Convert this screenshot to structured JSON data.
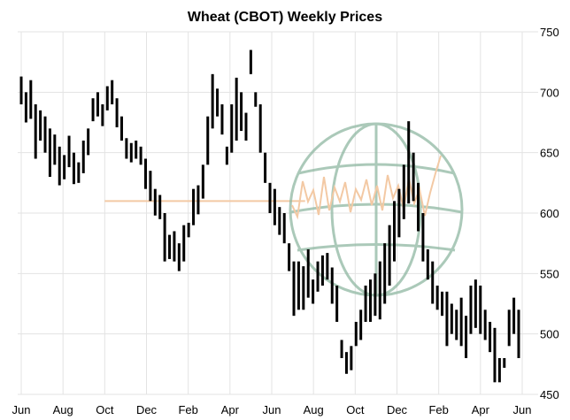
{
  "chart_data": {
    "type": "bar",
    "subtype": "ohlc-weekly",
    "title": "Wheat (CBOT) Weekly Prices",
    "xlabel": "",
    "ylabel": "",
    "x_tick_labels": [
      "Jun",
      "Aug",
      "Oct",
      "Dec",
      "Feb",
      "Apr",
      "Jun",
      "Aug",
      "Oct",
      "Dec",
      "Feb",
      "Apr",
      "Jun"
    ],
    "y_ticks": [
      450,
      500,
      550,
      600,
      650,
      700,
      750
    ],
    "ylim": [
      450,
      750
    ],
    "y_axis_side": "right",
    "grid": true,
    "legend": "none",
    "colors": {
      "bars": "#000000",
      "grid": "#e3e3e3",
      "overlay_line": "#f3c9a4",
      "globe": "#8fb8a2"
    },
    "overlay": {
      "name": "",
      "value": 610
    },
    "series": [
      {
        "name": "",
        "bars": [
          {
            "h": 713,
            "l": 690
          },
          {
            "h": 700,
            "l": 675
          },
          {
            "h": 710,
            "l": 678
          },
          {
            "h": 690,
            "l": 645
          },
          {
            "h": 685,
            "l": 660
          },
          {
            "h": 680,
            "l": 650
          },
          {
            "h": 670,
            "l": 630
          },
          {
            "h": 665,
            "l": 640
          },
          {
            "h": 655,
            "l": 623
          },
          {
            "h": 648,
            "l": 628
          },
          {
            "h": 664,
            "l": 638
          },
          {
            "h": 650,
            "l": 624
          },
          {
            "h": 642,
            "l": 625
          },
          {
            "h": 660,
            "l": 633
          },
          {
            "h": 670,
            "l": 648
          },
          {
            "h": 695,
            "l": 676
          },
          {
            "h": 700,
            "l": 680
          },
          {
            "h": 690,
            "l": 672
          },
          {
            "h": 705,
            "l": 685
          },
          {
            "h": 710,
            "l": 690
          },
          {
            "h": 695,
            "l": 671
          },
          {
            "h": 680,
            "l": 660
          },
          {
            "h": 662,
            "l": 645
          },
          {
            "h": 658,
            "l": 642
          },
          {
            "h": 660,
            "l": 645
          },
          {
            "h": 655,
            "l": 640
          },
          {
            "h": 645,
            "l": 620
          },
          {
            "h": 635,
            "l": 610
          },
          {
            "h": 620,
            "l": 598
          },
          {
            "h": 615,
            "l": 595
          },
          {
            "h": 600,
            "l": 560
          },
          {
            "h": 582,
            "l": 562
          },
          {
            "h": 585,
            "l": 560
          },
          {
            "h": 575,
            "l": 552
          },
          {
            "h": 590,
            "l": 560
          },
          {
            "h": 592,
            "l": 580
          },
          {
            "h": 620,
            "l": 590
          },
          {
            "h": 623,
            "l": 599
          },
          {
            "h": 640,
            "l": 612
          },
          {
            "h": 680,
            "l": 640
          },
          {
            "h": 715,
            "l": 670
          },
          {
            "h": 703,
            "l": 680
          },
          {
            "h": 690,
            "l": 665
          },
          {
            "h": 655,
            "l": 640
          },
          {
            "h": 690,
            "l": 650
          },
          {
            "h": 712,
            "l": 660
          },
          {
            "h": 700,
            "l": 668
          },
          {
            "h": 683,
            "l": 660
          },
          {
            "h": 735,
            "l": 715
          },
          {
            "h": 700,
            "l": 688
          },
          {
            "h": 690,
            "l": 650
          },
          {
            "h": 650,
            "l": 625
          },
          {
            "h": 625,
            "l": 600
          },
          {
            "h": 620,
            "l": 590
          },
          {
            "h": 605,
            "l": 582
          },
          {
            "h": 600,
            "l": 575
          },
          {
            "h": 575,
            "l": 552
          },
          {
            "h": 560,
            "l": 515
          },
          {
            "h": 560,
            "l": 520
          },
          {
            "h": 556,
            "l": 520
          },
          {
            "h": 570,
            "l": 530
          },
          {
            "h": 545,
            "l": 525
          },
          {
            "h": 560,
            "l": 535
          },
          {
            "h": 565,
            "l": 540
          },
          {
            "h": 567,
            "l": 545
          },
          {
            "h": 555,
            "l": 525
          },
          {
            "h": 540,
            "l": 510
          },
          {
            "h": 495,
            "l": 480
          },
          {
            "h": 485,
            "l": 467
          },
          {
            "h": 490,
            "l": 470
          },
          {
            "h": 510,
            "l": 490
          },
          {
            "h": 520,
            "l": 495
          },
          {
            "h": 540,
            "l": 510
          },
          {
            "h": 545,
            "l": 510
          },
          {
            "h": 550,
            "l": 515
          },
          {
            "h": 560,
            "l": 512
          },
          {
            "h": 575,
            "l": 525
          },
          {
            "h": 590,
            "l": 540
          },
          {
            "h": 610,
            "l": 560
          },
          {
            "h": 620,
            "l": 580
          },
          {
            "h": 640,
            "l": 595
          },
          {
            "h": 676,
            "l": 608
          },
          {
            "h": 650,
            "l": 610
          },
          {
            "h": 625,
            "l": 585
          },
          {
            "h": 600,
            "l": 560
          },
          {
            "h": 570,
            "l": 545
          },
          {
            "h": 560,
            "l": 525
          },
          {
            "h": 540,
            "l": 520
          },
          {
            "h": 535,
            "l": 515
          },
          {
            "h": 535,
            "l": 490
          },
          {
            "h": 525,
            "l": 500
          },
          {
            "h": 520,
            "l": 495
          },
          {
            "h": 530,
            "l": 490
          },
          {
            "h": 515,
            "l": 480
          },
          {
            "h": 540,
            "l": 500
          },
          {
            "h": 545,
            "l": 505
          },
          {
            "h": 540,
            "l": 500
          },
          {
            "h": 520,
            "l": 495
          },
          {
            "h": 510,
            "l": 485
          },
          {
            "h": 505,
            "l": 460
          },
          {
            "h": 480,
            "l": 460
          },
          {
            "h": 480,
            "l": 472
          },
          {
            "h": 520,
            "l": 490
          },
          {
            "h": 530,
            "l": 500
          },
          {
            "h": 520,
            "l": 480
          }
        ]
      }
    ]
  }
}
